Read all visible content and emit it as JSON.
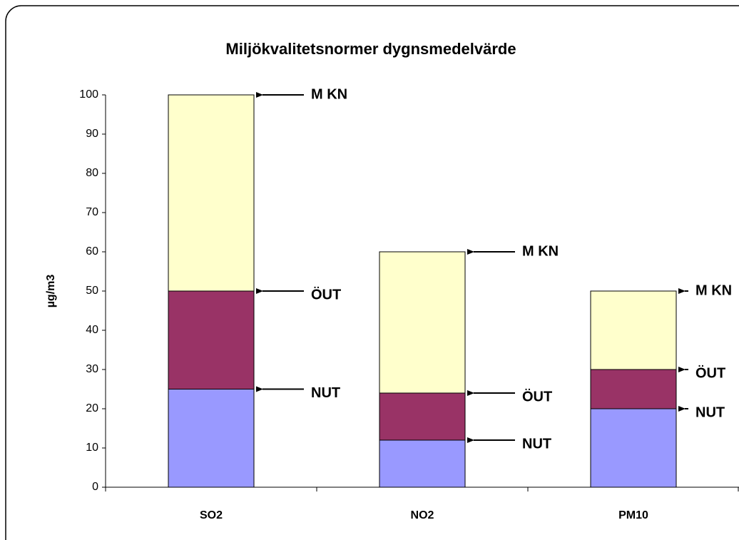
{
  "chart_data": {
    "type": "stacked_bar",
    "title": "Miljökvalitetsnormer dygnsmedelvärde",
    "y_label": "µg/m3",
    "categories": [
      "SO2",
      "NO2",
      "PM10"
    ],
    "series": [
      {
        "name": "NUT",
        "color": "#9999ff",
        "values": [
          25,
          12,
          20
        ]
      },
      {
        "name": "ÖUT",
        "color": "#993366",
        "values": [
          25,
          12,
          10
        ]
      },
      {
        "name": "M KN",
        "color": "#ffffcc",
        "values": [
          50,
          36,
          20
        ]
      }
    ],
    "ylim": [
      0,
      100
    ],
    "yticks": [
      0,
      10,
      20,
      30,
      40,
      50,
      60,
      70,
      80,
      90,
      100
    ]
  }
}
